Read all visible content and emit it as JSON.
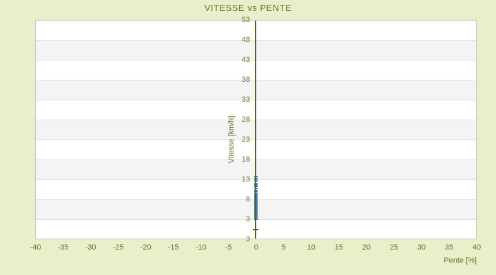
{
  "colors": {
    "page_background": "#e9eecb",
    "band_white": "#ffffff",
    "band_gray": "#f4f4f4",
    "band_divider": "#dcdcdc",
    "plot_border": "#c6c6c6",
    "text_olive": "#6b7326",
    "axis_line": "#57611b",
    "marker_blue": "#4080b2"
  },
  "chart_data": {
    "type": "scatter",
    "title": "VITESSE vs PENTE",
    "xlabel": "Pente [%]",
    "ylabel": "Vitesse [km/h]",
    "xlim": [
      -40,
      40
    ],
    "ylim": [
      3,
      53
    ],
    "xticks": [
      -40,
      -35,
      -30,
      -25,
      -20,
      -15,
      -10,
      -5,
      0,
      5,
      10,
      15,
      20,
      25,
      30,
      35,
      40
    ],
    "yticks": [
      53,
      48,
      43,
      38,
      33,
      28,
      23,
      18,
      13,
      8,
      3
    ],
    "extra_bottom_ytick": "3",
    "grid": "horizontal-bands-alternating",
    "legend": "none",
    "points_x": 0,
    "dense_y_range": [
      3,
      9.7
    ],
    "sparse_y_values": [
      10.1,
      10.5,
      11.0,
      11.4,
      11.8,
      12.2,
      12.9,
      13.3,
      13.8
    ],
    "note": "all data points lie on the vertical line Pente = 0; speeds cluster densely between 3 and ~10 km/h with sparse points up to ~14 km/h"
  }
}
